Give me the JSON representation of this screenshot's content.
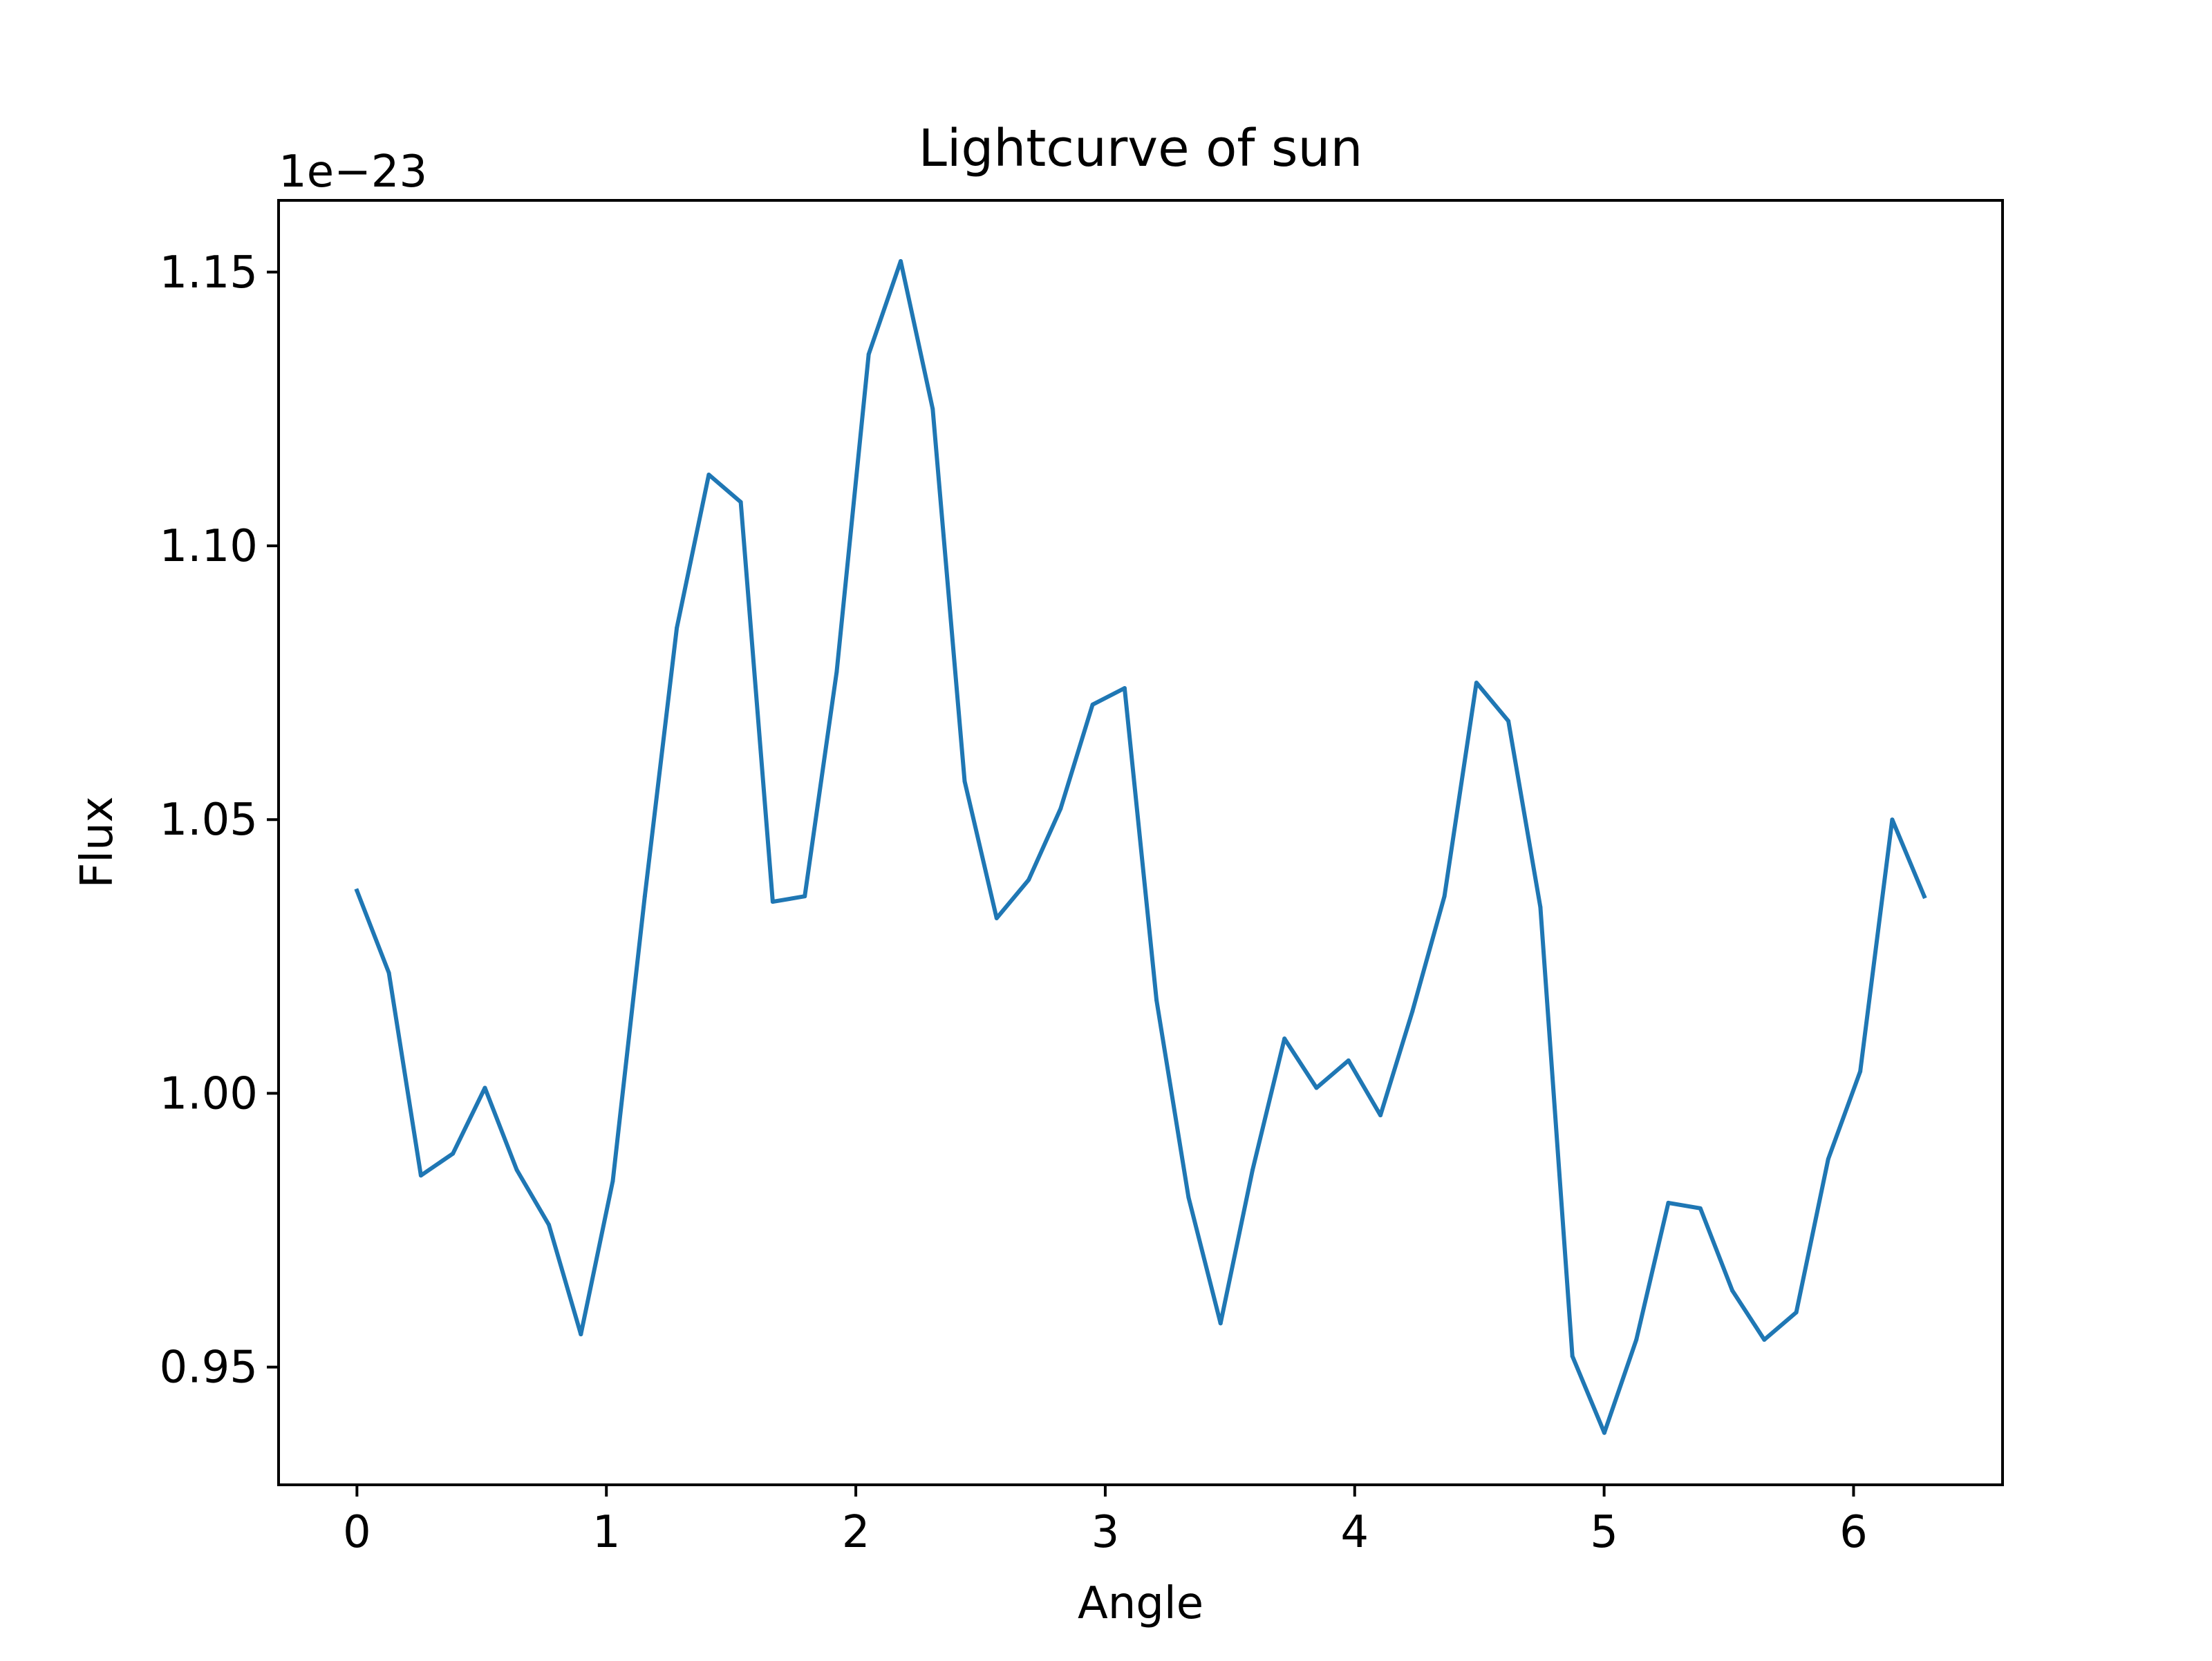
{
  "chart_data": {
    "type": "line",
    "title": "Lightcurve of sun",
    "xlabel": "Angle",
    "ylabel": "Flux",
    "y_offset_text": "1e−23",
    "xlim": [
      -0.3142,
      6.5973
    ],
    "ylim": [
      0.9285,
      1.1631
    ],
    "x_ticks": [
      0,
      1,
      2,
      3,
      4,
      5,
      6
    ],
    "x_tick_labels": [
      "0",
      "1",
      "2",
      "3",
      "4",
      "5",
      "6"
    ],
    "y_ticks": [
      0.95,
      1.0,
      1.05,
      1.1,
      1.15
    ],
    "y_tick_labels": [
      "0.95",
      "1.00",
      "1.05",
      "1.10",
      "1.15"
    ],
    "grid": false,
    "legend": "none",
    "colors": {
      "line": "#1f77b4",
      "axes": "#000000",
      "background": "#ffffff"
    },
    "series": [
      {
        "x": [
          0.0,
          0.1282,
          0.2565,
          0.3847,
          0.5129,
          0.6411,
          0.7694,
          0.8976,
          1.0258,
          1.1541,
          1.2823,
          1.4105,
          1.5387,
          1.667,
          1.7952,
          1.9234,
          2.0517,
          2.1799,
          2.3081,
          2.4363,
          2.5646,
          2.6928,
          2.821,
          2.9493,
          3.0775,
          3.2057,
          3.3339,
          3.4622,
          3.5904,
          3.7186,
          3.8468,
          3.9751,
          4.1033,
          4.2315,
          4.3598,
          4.488,
          4.6162,
          4.7444,
          4.8727,
          5.0009,
          5.1291,
          5.2574,
          5.3856,
          5.5138,
          5.642,
          5.7703,
          5.8985,
          6.0267,
          6.155,
          6.2832
        ],
        "values": [
          1.037,
          1.022,
          0.985,
          0.989,
          1.001,
          0.986,
          0.976,
          0.956,
          0.984,
          1.036,
          1.085,
          1.113,
          1.108,
          1.035,
          1.036,
          1.077,
          1.135,
          1.152,
          1.125,
          1.057,
          1.032,
          1.039,
          1.052,
          1.071,
          1.074,
          1.017,
          0.981,
          0.958,
          0.986,
          1.01,
          1.001,
          1.006,
          0.996,
          1.015,
          1.036,
          1.075,
          1.068,
          1.034,
          0.952,
          0.938,
          0.955,
          0.98,
          0.979,
          0.964,
          0.955,
          0.96,
          0.988,
          1.004,
          1.05,
          1.036
        ]
      }
    ]
  }
}
